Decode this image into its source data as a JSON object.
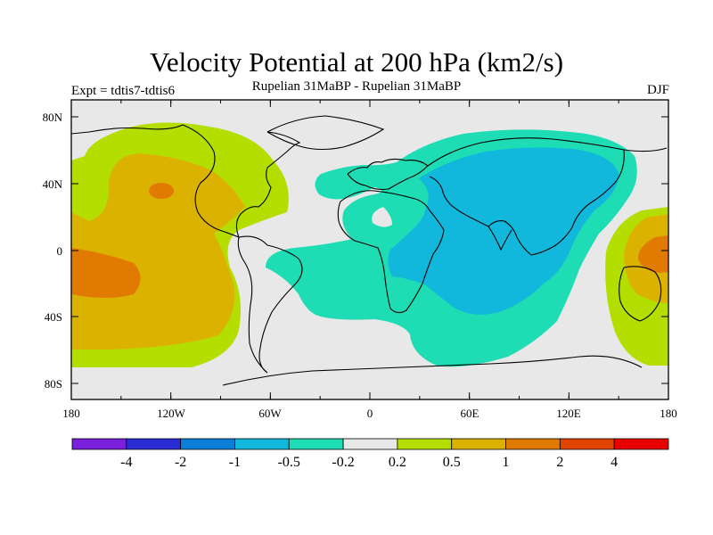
{
  "title": "Velocity Potential at 200 hPa (km2/s)",
  "subtitle": "Rupelian  31MaBP - Rupelian  31MaBP",
  "experiment": "Expt = tdtis7-tdtis6",
  "season": "DJF",
  "lat_labels": [
    "80N",
    "40N",
    "0",
    "40S",
    "80S"
  ],
  "lon_labels": [
    "180",
    "120W",
    "60W",
    "0",
    "60E",
    "120E",
    "180"
  ],
  "colorbar": {
    "colors": [
      "#7a1fdc",
      "#2b2bd6",
      "#0c7ed8",
      "#12b8dc",
      "#1edcb4",
      "#e8e8e8",
      "#b4de00",
      "#dcb200",
      "#e07a00",
      "#e04400",
      "#e80000"
    ],
    "labels": [
      "-4",
      "-2",
      "-1",
      "-0.5",
      "-0.2",
      "0.2",
      "0.5",
      "1",
      "2",
      "4"
    ]
  },
  "colors": {
    "neutral": "#e8e8e8",
    "level_0_2_to_0_5": "#b4de00",
    "level_0_5_to_1": "#dcb200",
    "level_1_to_2": "#e07a00",
    "level_neg0_2_to_neg0_5": "#1edcb4",
    "level_neg0_5_to_neg1": "#12b8dc"
  }
}
